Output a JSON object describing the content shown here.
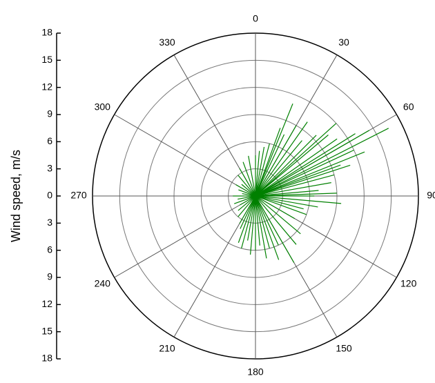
{
  "chart_data": {
    "type": "polar",
    "y_label": "Wind speed, m/s",
    "color": "#008000",
    "xlim": [
      0,
      360
    ],
    "xticks": [
      0,
      30,
      60,
      90,
      120,
      150,
      180,
      210,
      240,
      270,
      300,
      330
    ],
    "ylim": [
      -18,
      18
    ],
    "yticks": [
      18,
      15,
      12,
      9,
      6,
      3,
      0,
      {
        "value": -3,
        "label": "3"
      },
      {
        "value": -6,
        "label": "6"
      },
      {
        "value": -9,
        "label": "9"
      },
      {
        "value": -12,
        "label": "12"
      },
      {
        "value": -15,
        "label": "15"
      },
      {
        "value": -18,
        "label": "18"
      }
    ],
    "grid": true,
    "x": [
      63,
      60,
      58,
      65,
      55,
      50,
      45,
      40,
      30,
      25,
      20,
      15,
      10,
      5,
      0,
      70,
      75,
      80,
      85,
      90,
      95,
      100,
      105,
      110,
      120,
      130,
      140,
      150,
      155,
      160,
      165,
      170,
      175,
      180,
      185,
      190,
      195,
      200,
      205,
      210,
      220,
      230,
      240,
      250,
      260,
      270,
      280,
      290,
      300,
      310,
      320,
      330,
      340,
      350,
      48,
      35,
      68,
      72,
      88,
      22
    ],
    "values": [
      16.5,
      14.5,
      13,
      12,
      11,
      10.5,
      9.5,
      8,
      9,
      7.5,
      8,
      6,
      5.5,
      5,
      4.5,
      10,
      9,
      8.5,
      7,
      6.5,
      9.5,
      7,
      5.5,
      6,
      5,
      6.5,
      7,
      8.5,
      6,
      7.5,
      6,
      7,
      5.5,
      6,
      6.5,
      5,
      6,
      5.5,
      4,
      3.5,
      3,
      2.5,
      2,
      2.5,
      2,
      2.5,
      1.5,
      2,
      2.5,
      2,
      3,
      3.5,
      4,
      4.5,
      12,
      10,
      13,
      11,
      9,
      11
    ]
  }
}
